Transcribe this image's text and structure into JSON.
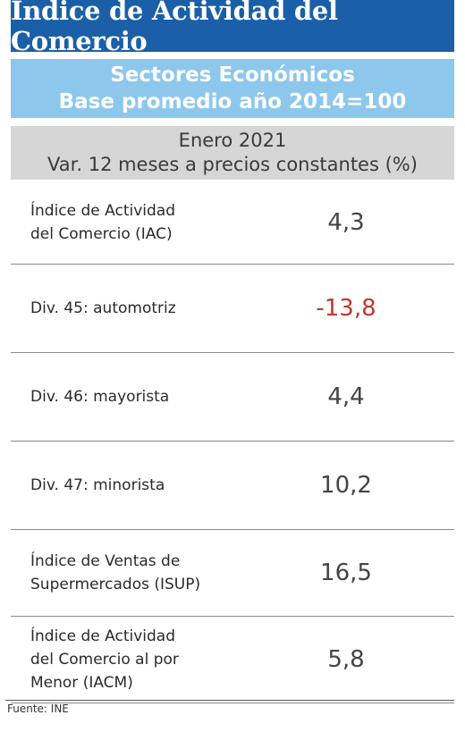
{
  "title": "Índice de Actividad del Comercio",
  "subtitle": {
    "line1": "Sectores Económicos",
    "line2": "Base promedio año 2014=100"
  },
  "period": {
    "line1": "Enero 2021",
    "line2": "Var. 12 meses a precios constantes (%)"
  },
  "rows": [
    {
      "label_lines": [
        "Índice de Actividad",
        "del Comercio (IAC)"
      ],
      "value": "4,3"
    },
    {
      "label_lines": [
        "Div. 45: automotriz"
      ],
      "value": "-13,8",
      "negative": true
    },
    {
      "label_lines": [
        "Div. 46: mayorista"
      ],
      "value": "4,4"
    },
    {
      "label_lines": [
        "Div. 47: minorista"
      ],
      "value": "10,2"
    },
    {
      "label_lines": [
        "Índice de Ventas de",
        "Supermercados (ISUP)"
      ],
      "value": "16,5"
    },
    {
      "label_lines": [
        "Índice de Actividad",
        "del Comercio al por",
        "Menor (IACM)"
      ],
      "value": "5,8"
    }
  ],
  "colors": {
    "title_bg": "#1a5fa8",
    "subtitle_bg": "#8ec7ec",
    "period_bg": "#d6d6d6",
    "negative": "#c0392b"
  },
  "source": "Fuente: INE"
}
